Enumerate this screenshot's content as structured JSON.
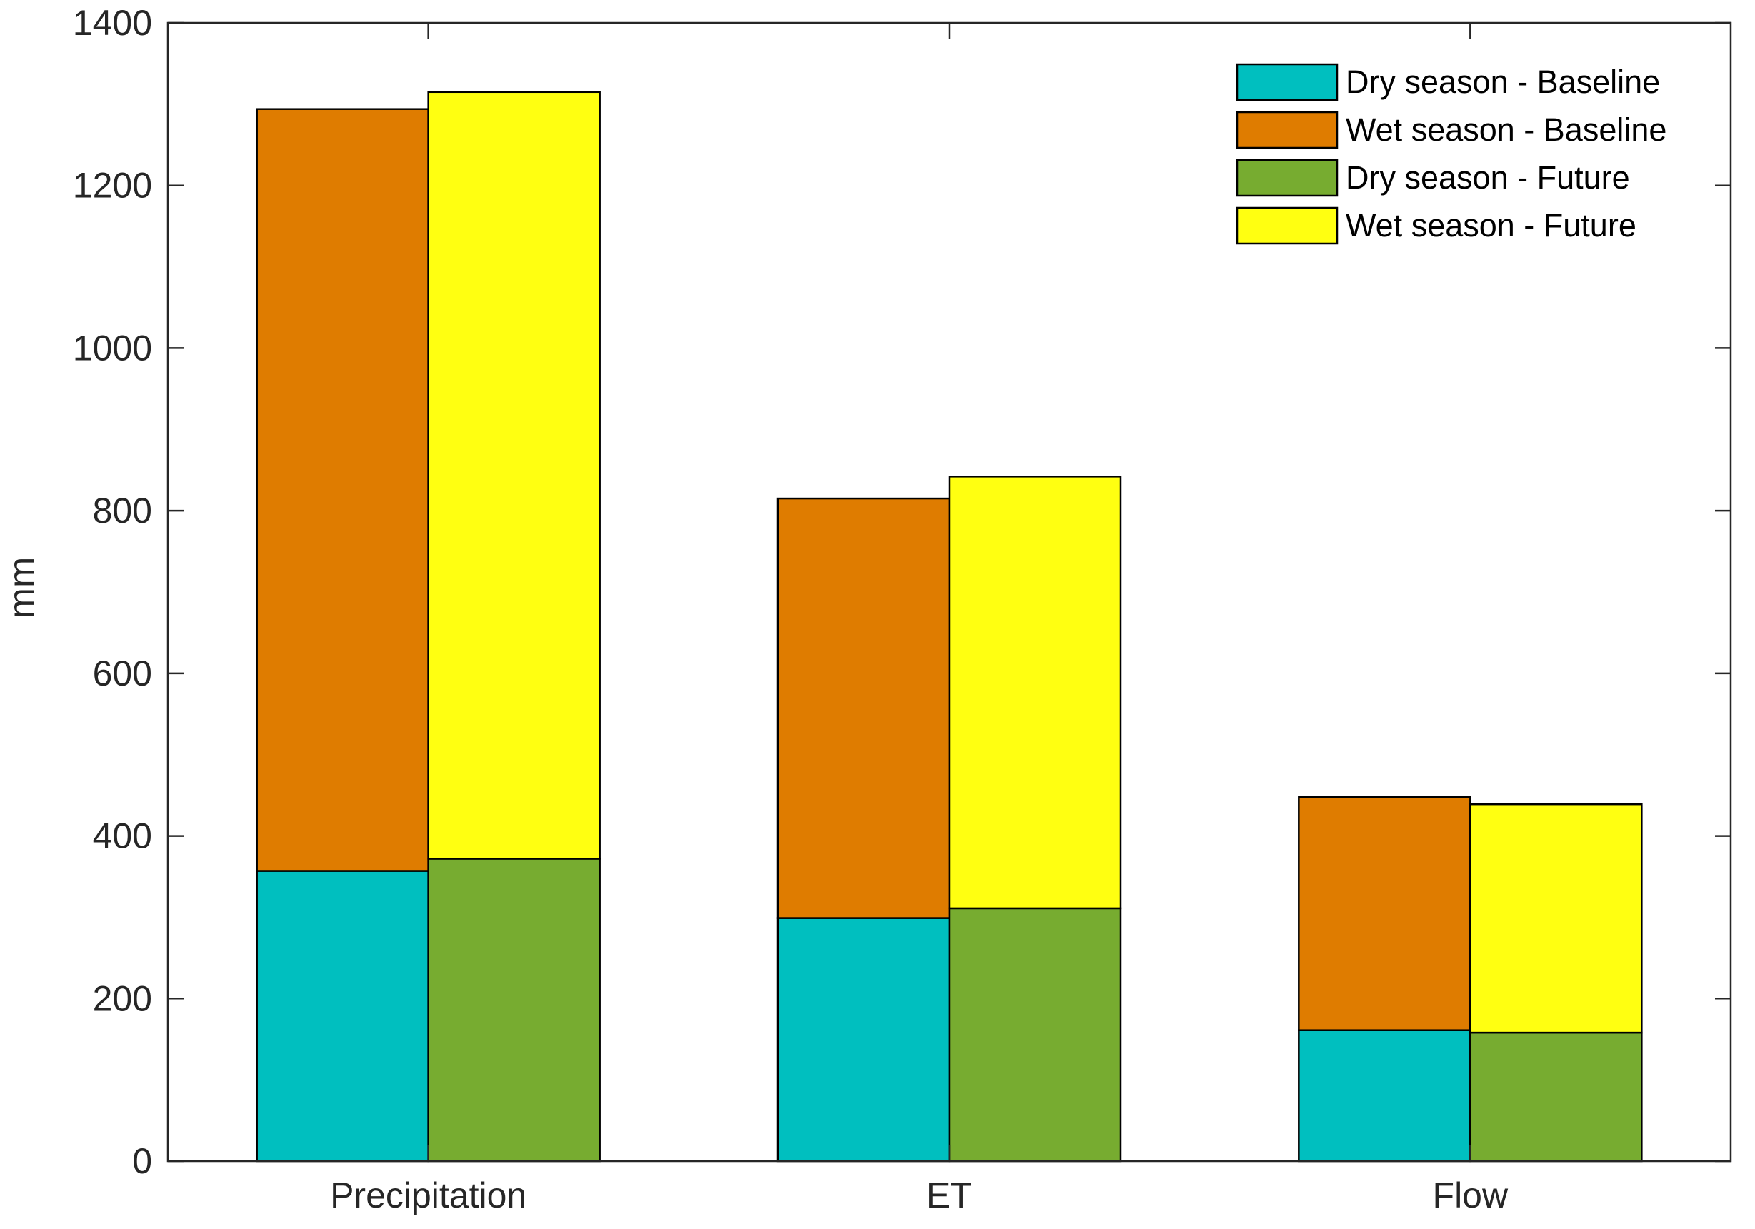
{
  "chart_data": {
    "type": "bar",
    "stacked": true,
    "title": "",
    "xlabel": "",
    "ylabel": "mm",
    "ylim": [
      0,
      1400
    ],
    "yticks": [
      0,
      200,
      400,
      600,
      800,
      1000,
      1200,
      1400
    ],
    "categories": [
      "Precipitation",
      "ET",
      "Flow"
    ],
    "groups": [
      {
        "name": "Baseline",
        "series": [
          {
            "name": "Dry season - Baseline",
            "color": "#00BFBF",
            "values": [
              357,
              299,
              161
            ]
          },
          {
            "name": "Wet season - Baseline",
            "color": "#DF7C00",
            "values": [
              937,
              516,
              287
            ]
          }
        ]
      },
      {
        "name": "Future",
        "series": [
          {
            "name": "Dry season - Future",
            "color": "#77AC30",
            "values": [
              372,
              311,
              158
            ]
          },
          {
            "name": "Wet season - Future",
            "color": "#FFFF11",
            "values": [
              943,
              531,
              281
            ]
          }
        ]
      }
    ],
    "legend": {
      "position": "top-right",
      "entries": [
        "Dry season - Baseline",
        "Wet season - Baseline",
        "Dry season - Future",
        "Wet season - Future"
      ]
    },
    "grid": false
  }
}
